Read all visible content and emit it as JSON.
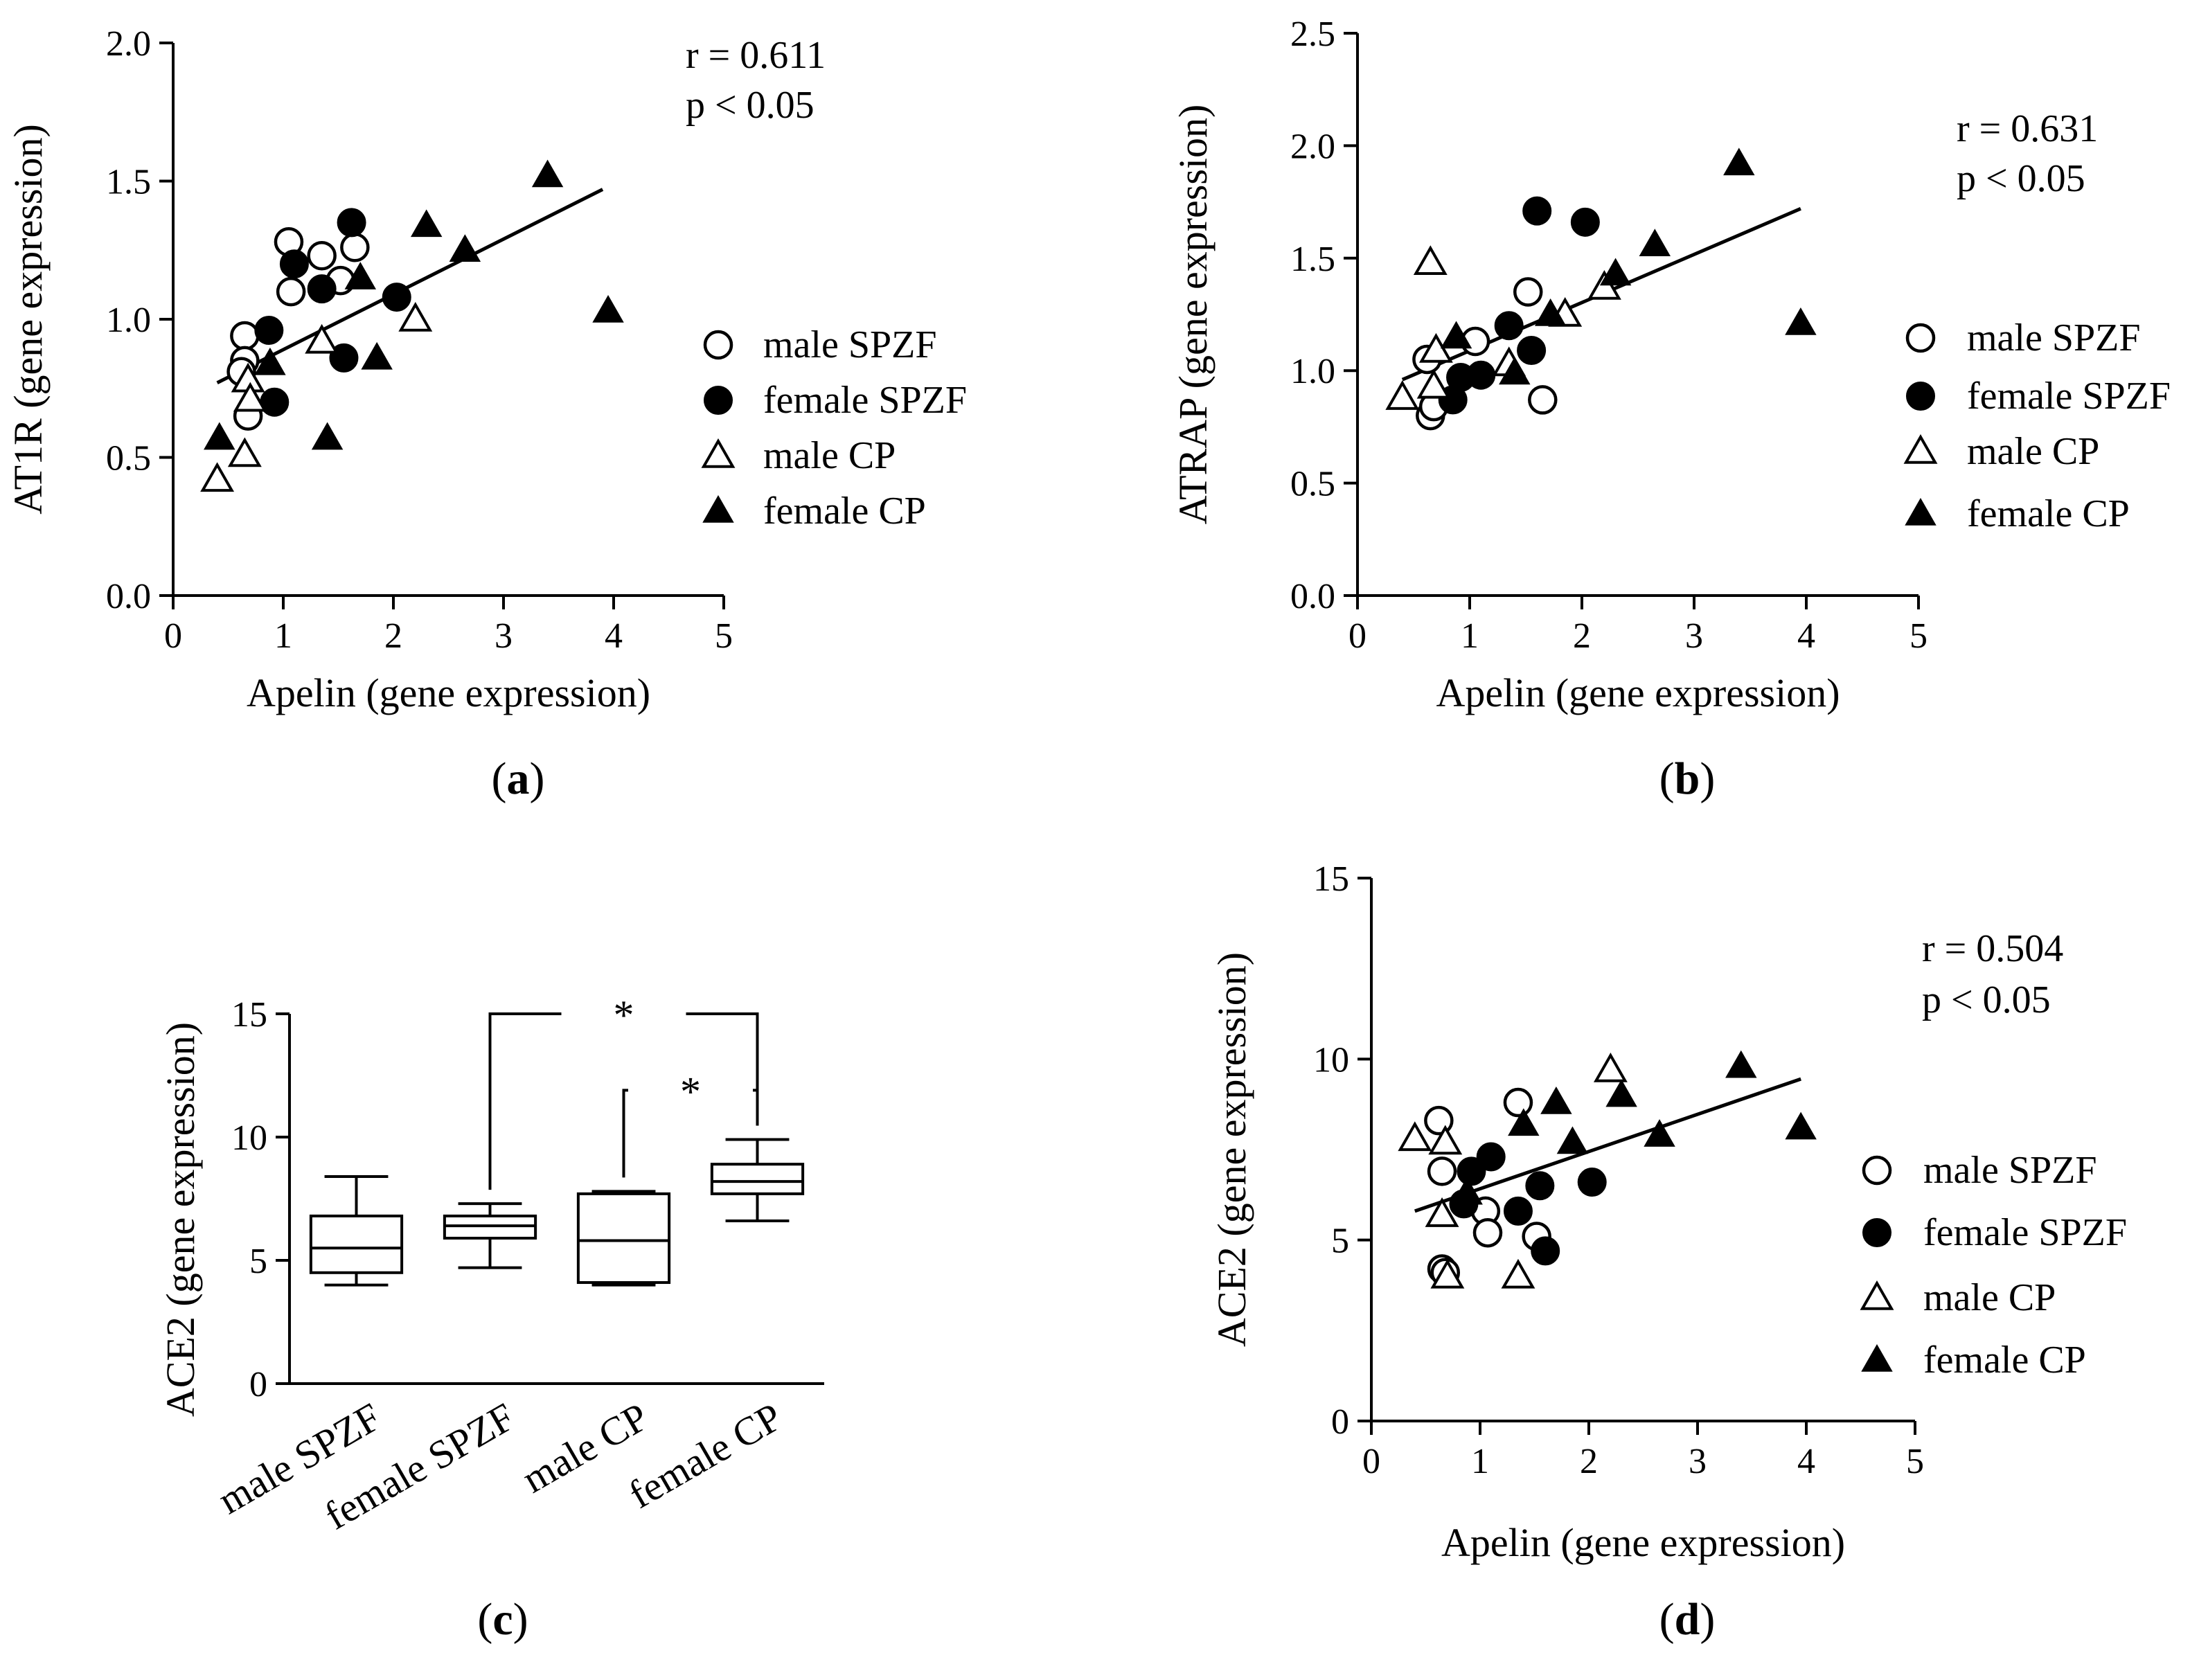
{
  "colors": {
    "ink": "#000000",
    "background": "#ffffff"
  },
  "chart_data": [
    {
      "id": "a",
      "type": "scatter",
      "panel_label": "a",
      "xlabel": "Apelin (gene expression)",
      "ylabel": "AT1R (gene expression)",
      "xlim": [
        0,
        5
      ],
      "ylim": [
        0,
        2.0
      ],
      "xticks": [
        "0",
        "1",
        "2",
        "3",
        "4",
        "5"
      ],
      "xtick_values": [
        0,
        1,
        2,
        3,
        4,
        5
      ],
      "yticks": [
        "0.0",
        "0.5",
        "1.0",
        "1.5",
        "2.0"
      ],
      "ytick_values": [
        0,
        0.5,
        1.0,
        1.5,
        2.0
      ],
      "stats": [
        "r = 0.611",
        "p < 0.05"
      ],
      "stats_corner": "top-right",
      "legend_position": "right",
      "regression_line": {
        "x": [
          0.4,
          3.9
        ],
        "y": [
          0.77,
          1.47
        ]
      },
      "series": [
        {
          "name": "male SPZF",
          "marker": "circle-open",
          "x": [
            0.65,
            0.65,
            0.62,
            0.68,
            1.05,
            1.07,
            1.35,
            1.52,
            1.65
          ],
          "y": [
            0.94,
            0.85,
            0.81,
            0.65,
            1.28,
            1.1,
            1.23,
            1.14,
            1.26
          ]
        },
        {
          "name": "female SPZF",
          "marker": "circle-filled",
          "x": [
            0.87,
            0.92,
            1.1,
            1.35,
            1.55,
            1.62,
            2.03
          ],
          "y": [
            0.96,
            0.7,
            1.2,
            1.11,
            0.86,
            1.35,
            1.08
          ]
        },
        {
          "name": "male CP",
          "marker": "triangle-open",
          "x": [
            0.4,
            0.65,
            0.68,
            0.7,
            1.35,
            2.2
          ],
          "y": [
            0.42,
            0.51,
            0.78,
            0.71,
            0.92,
            1.0
          ]
        },
        {
          "name": "female CP",
          "marker": "triangle-filled",
          "x": [
            0.42,
            0.88,
            1.4,
            1.7,
            1.85,
            2.3,
            2.65,
            3.4,
            3.95
          ],
          "y": [
            0.57,
            0.84,
            0.57,
            1.15,
            0.86,
            1.34,
            1.25,
            1.52,
            1.03
          ]
        }
      ]
    },
    {
      "id": "b",
      "type": "scatter",
      "panel_label": "b",
      "xlabel": "Apelin (gene expression)",
      "ylabel": "ATRAP (gene expression)",
      "xlim": [
        0,
        5
      ],
      "ylim": [
        0,
        2.5
      ],
      "xticks": [
        "0",
        "1",
        "2",
        "3",
        "4",
        "5"
      ],
      "xtick_values": [
        0,
        1,
        2,
        3,
        4,
        5
      ],
      "yticks": [
        "0.0",
        "0.5",
        "1.0",
        "1.5",
        "2.0",
        "2.5"
      ],
      "ytick_values": [
        0,
        0.5,
        1.0,
        1.5,
        2.0,
        2.5
      ],
      "stats": [
        "r = 0.631",
        "p < 0.05"
      ],
      "stats_corner": "top-right",
      "legend_position": "right",
      "regression_line": {
        "x": [
          0.4,
          3.95
        ],
        "y": [
          0.96,
          1.72
        ]
      },
      "series": [
        {
          "name": "male SPZF",
          "marker": "circle-open",
          "x": [
            0.62,
            0.65,
            0.68,
            1.05,
            1.52,
            1.65
          ],
          "y": [
            1.05,
            0.8,
            0.84,
            1.13,
            1.35,
            0.87
          ]
        },
        {
          "name": "female SPZF",
          "marker": "circle-filled",
          "x": [
            0.85,
            0.92,
            1.1,
            1.35,
            1.55,
            1.6,
            2.03
          ],
          "y": [
            0.87,
            0.97,
            0.98,
            1.2,
            1.09,
            1.71,
            1.66
          ]
        },
        {
          "name": "male CP",
          "marker": "triangle-open",
          "x": [
            0.4,
            0.65,
            0.68,
            0.7,
            1.35,
            1.85,
            2.2
          ],
          "y": [
            0.88,
            1.48,
            0.93,
            1.09,
            1.03,
            1.25,
            1.37
          ]
        },
        {
          "name": "female CP",
          "marker": "triangle-filled",
          "x": [
            0.88,
            1.4,
            1.72,
            2.3,
            2.65,
            3.4,
            3.95
          ],
          "y": [
            1.15,
            0.99,
            1.25,
            1.43,
            1.56,
            1.92,
            1.21
          ]
        }
      ]
    },
    {
      "id": "c",
      "type": "boxplot",
      "panel_label": "c",
      "xlabel": "",
      "ylabel": "ACE2 (gene expression)",
      "ylim": [
        0,
        15
      ],
      "yticks": [
        "0",
        "5",
        "10",
        "15"
      ],
      "ytick_values": [
        0,
        5,
        10,
        15
      ],
      "categories": [
        "male SPZF",
        "female SPZF",
        "male CP",
        "female CP"
      ],
      "boxes": [
        {
          "min": 4.0,
          "q1": 4.5,
          "median": 5.5,
          "q3": 6.8,
          "max": 8.4
        },
        {
          "min": 4.7,
          "q1": 5.9,
          "median": 6.4,
          "q3": 6.8,
          "max": 7.3
        },
        {
          "min": 4.0,
          "q1": 4.1,
          "median": 5.8,
          "q3": 7.7,
          "max": 7.8
        },
        {
          "min": 6.6,
          "q1": 7.7,
          "median": 8.2,
          "q3": 8.9,
          "max": 9.9
        }
      ],
      "significance": [
        {
          "from": 1,
          "to": 3,
          "label": "*",
          "level": 15.0
        },
        {
          "from": 2,
          "to": 3,
          "label": "*",
          "level": 11.9
        }
      ]
    },
    {
      "id": "d",
      "type": "scatter",
      "panel_label": "d",
      "xlabel": "Apelin (gene expression)",
      "ylabel": "ACE2 (gene expression)",
      "xlim": [
        0,
        5
      ],
      "ylim": [
        0,
        15
      ],
      "xticks": [
        "0",
        "1",
        "2",
        "3",
        "4",
        "5"
      ],
      "xtick_values": [
        0,
        1,
        2,
        3,
        4,
        5
      ],
      "yticks": [
        "0",
        "5",
        "10",
        "15"
      ],
      "ytick_values": [
        0,
        5,
        10,
        15
      ],
      "stats": [
        "r = 0.504",
        "p < 0.05"
      ],
      "stats_corner": "top-right",
      "legend_position": "right",
      "regression_line": {
        "x": [
          0.4,
          3.95
        ],
        "y": [
          5.8,
          9.45
        ]
      },
      "series": [
        {
          "name": "male SPZF",
          "marker": "circle-open",
          "x": [
            0.62,
            0.65,
            0.65,
            0.68,
            1.05,
            1.07,
            1.35,
            1.52
          ],
          "y": [
            8.3,
            6.9,
            4.2,
            4.1,
            5.8,
            5.2,
            8.8,
            5.1
          ]
        },
        {
          "name": "female SPZF",
          "marker": "circle-filled",
          "x": [
            0.85,
            0.92,
            1.1,
            1.35,
            1.55,
            1.6,
            2.03
          ],
          "y": [
            6.0,
            6.9,
            7.3,
            5.8,
            6.5,
            4.7,
            6.6
          ]
        },
        {
          "name": "male CP",
          "marker": "triangle-open",
          "x": [
            0.4,
            0.65,
            0.68,
            0.7,
            1.35,
            2.2
          ],
          "y": [
            7.8,
            5.7,
            7.7,
            4.0,
            4.0,
            9.7
          ]
        },
        {
          "name": "female CP",
          "marker": "triangle-filled",
          "x": [
            0.88,
            1.4,
            1.7,
            1.85,
            2.3,
            2.65,
            3.4,
            3.95
          ],
          "y": [
            6.3,
            8.2,
            8.8,
            7.7,
            9.0,
            7.9,
            9.8,
            8.1
          ]
        }
      ]
    }
  ]
}
